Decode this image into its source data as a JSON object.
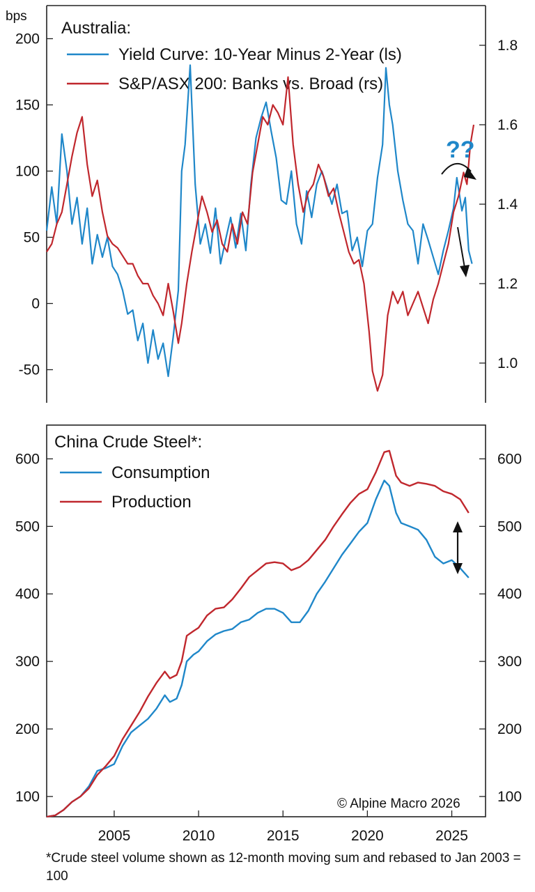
{
  "chart_data": [
    {
      "type": "line",
      "title": "Australia:",
      "left_axis_unit": "bps",
      "x_range": [
        2001,
        2027
      ],
      "left_ylim": [
        -75,
        225
      ],
      "right_ylim": [
        0.9,
        1.9
      ],
      "left_ticks": [
        "-50",
        "0",
        "50",
        "100",
        "150",
        "200"
      ],
      "left_tick_values": [
        -50,
        0,
        50,
        100,
        150,
        200
      ],
      "right_ticks": [
        "1.0",
        "1.2",
        "1.4",
        "1.6",
        "1.8"
      ],
      "right_tick_values": [
        1.0,
        1.2,
        1.4,
        1.6,
        1.8
      ],
      "annotation": "??",
      "series": [
        {
          "name": "Yield Curve: 10-Year Minus 2-Year (ls)",
          "axis": "left",
          "color": "#1f87c9",
          "x": [
            2001.0,
            2001.3,
            2001.6,
            2001.9,
            2002.2,
            2002.5,
            2002.8,
            2003.1,
            2003.4,
            2003.7,
            2004.0,
            2004.3,
            2004.6,
            2004.9,
            2005.2,
            2005.5,
            2005.8,
            2006.1,
            2006.4,
            2006.7,
            2007.0,
            2007.3,
            2007.6,
            2007.9,
            2008.2,
            2008.5,
            2008.8,
            2009.0,
            2009.2,
            2009.5,
            2009.8,
            2010.1,
            2010.4,
            2010.7,
            2011.0,
            2011.3,
            2011.6,
            2011.9,
            2012.2,
            2012.5,
            2012.8,
            2013.1,
            2013.4,
            2013.7,
            2014.0,
            2014.3,
            2014.6,
            2014.9,
            2015.2,
            2015.5,
            2015.8,
            2016.1,
            2016.4,
            2016.7,
            2017.0,
            2017.3,
            2017.6,
            2017.9,
            2018.2,
            2018.5,
            2018.8,
            2019.1,
            2019.4,
            2019.7,
            2020.0,
            2020.3,
            2020.6,
            2020.9,
            2021.1,
            2021.3,
            2021.5,
            2021.8,
            2022.1,
            2022.4,
            2022.7,
            2023.0,
            2023.3,
            2023.6,
            2023.9,
            2024.2,
            2024.5,
            2024.8,
            2025.1,
            2025.3,
            2025.6,
            2025.8,
            2026.0,
            2026.2
          ],
          "y": [
            55,
            88,
            60,
            128,
            100,
            60,
            80,
            45,
            72,
            30,
            52,
            35,
            50,
            28,
            22,
            10,
            -8,
            -5,
            -28,
            -15,
            -45,
            -20,
            -42,
            -30,
            -55,
            -25,
            10,
            100,
            120,
            180,
            90,
            45,
            60,
            38,
            72,
            30,
            48,
            65,
            42,
            68,
            40,
            90,
            125,
            140,
            152,
            130,
            110,
            78,
            75,
            100,
            60,
            45,
            85,
            65,
            90,
            100,
            88,
            75,
            90,
            68,
            70,
            40,
            50,
            28,
            55,
            60,
            95,
            120,
            178,
            150,
            135,
            100,
            78,
            60,
            55,
            30,
            60,
            48,
            35,
            22,
            40,
            55,
            72,
            95,
            70,
            80,
            40,
            30
          ]
        },
        {
          "name": "S&P/ASX 200: Banks vs. Broad (rs)",
          "axis": "right",
          "color": "#c0272d",
          "x": [
            2001.0,
            2001.3,
            2001.6,
            2001.9,
            2002.2,
            2002.5,
            2002.8,
            2003.1,
            2003.4,
            2003.7,
            2004.0,
            2004.3,
            2004.6,
            2004.9,
            2005.2,
            2005.5,
            2005.8,
            2006.1,
            2006.4,
            2006.7,
            2007.0,
            2007.3,
            2007.6,
            2007.9,
            2008.2,
            2008.5,
            2008.8,
            2009.0,
            2009.3,
            2009.6,
            2009.9,
            2010.2,
            2010.5,
            2010.8,
            2011.1,
            2011.4,
            2011.7,
            2012.0,
            2012.3,
            2012.6,
            2012.9,
            2013.2,
            2013.5,
            2013.8,
            2014.1,
            2014.4,
            2014.7,
            2015.0,
            2015.3,
            2015.6,
            2015.9,
            2016.2,
            2016.5,
            2016.8,
            2017.1,
            2017.4,
            2017.7,
            2018.0,
            2018.3,
            2018.6,
            2018.9,
            2019.2,
            2019.5,
            2019.8,
            2020.1,
            2020.3,
            2020.6,
            2020.9,
            2021.2,
            2021.5,
            2021.8,
            2022.1,
            2022.4,
            2022.7,
            2023.0,
            2023.3,
            2023.6,
            2023.9,
            2024.2,
            2024.5,
            2024.8,
            2025.1,
            2025.4,
            2025.7,
            2025.9,
            2026.1,
            2026.3
          ],
          "y": [
            1.28,
            1.3,
            1.35,
            1.38,
            1.45,
            1.52,
            1.58,
            1.62,
            1.5,
            1.42,
            1.46,
            1.38,
            1.32,
            1.3,
            1.29,
            1.27,
            1.25,
            1.25,
            1.22,
            1.2,
            1.2,
            1.17,
            1.15,
            1.12,
            1.2,
            1.13,
            1.05,
            1.1,
            1.2,
            1.28,
            1.35,
            1.42,
            1.38,
            1.33,
            1.36,
            1.3,
            1.28,
            1.35,
            1.3,
            1.38,
            1.35,
            1.48,
            1.55,
            1.62,
            1.6,
            1.65,
            1.63,
            1.6,
            1.72,
            1.55,
            1.45,
            1.38,
            1.43,
            1.45,
            1.5,
            1.47,
            1.42,
            1.44,
            1.38,
            1.33,
            1.28,
            1.25,
            1.26,
            1.2,
            1.08,
            0.98,
            0.93,
            0.97,
            1.12,
            1.18,
            1.15,
            1.18,
            1.12,
            1.15,
            1.18,
            1.14,
            1.1,
            1.16,
            1.2,
            1.25,
            1.3,
            1.38,
            1.42,
            1.48,
            1.45,
            1.55,
            1.6
          ]
        }
      ]
    },
    {
      "type": "line",
      "title": "China Crude Steel*:",
      "x_range": [
        2001,
        2027
      ],
      "ylim": [
        70,
        650
      ],
      "left_ticks": [
        "100",
        "200",
        "300",
        "400",
        "500",
        "600"
      ],
      "right_ticks": [
        "100",
        "200",
        "300",
        "400",
        "500",
        "600"
      ],
      "tick_values": [
        100,
        200,
        300,
        400,
        500,
        600
      ],
      "x_ticks": [
        "2005",
        "2010",
        "2015",
        "2020",
        "2025"
      ],
      "x_tick_values": [
        2005,
        2010,
        2015,
        2020,
        2025
      ],
      "series": [
        {
          "name": "Consumption",
          "color": "#1f87c9",
          "x": [
            2001.0,
            2001.5,
            2002.0,
            2002.5,
            2003.0,
            2003.5,
            2004.0,
            2004.5,
            2005.0,
            2005.5,
            2006.0,
            2006.5,
            2007.0,
            2007.5,
            2008.0,
            2008.3,
            2008.7,
            2009.0,
            2009.3,
            2009.7,
            2010.0,
            2010.5,
            2011.0,
            2011.5,
            2012.0,
            2012.5,
            2013.0,
            2013.5,
            2014.0,
            2014.5,
            2015.0,
            2015.5,
            2016.0,
            2016.5,
            2017.0,
            2017.5,
            2018.0,
            2018.5,
            2019.0,
            2019.5,
            2020.0,
            2020.5,
            2021.0,
            2021.3,
            2021.7,
            2022.0,
            2022.5,
            2023.0,
            2023.5,
            2024.0,
            2024.5,
            2025.0,
            2025.5,
            2026.0
          ],
          "y": [
            70,
            72,
            80,
            92,
            100,
            115,
            138,
            142,
            148,
            175,
            195,
            205,
            215,
            230,
            250,
            240,
            245,
            265,
            300,
            310,
            315,
            330,
            340,
            345,
            348,
            358,
            362,
            372,
            378,
            378,
            372,
            358,
            358,
            375,
            400,
            418,
            438,
            458,
            475,
            492,
            505,
            540,
            568,
            560,
            520,
            505,
            500,
            495,
            480,
            455,
            445,
            450,
            438,
            424
          ]
        },
        {
          "name": "Production",
          "color": "#c0272d",
          "x": [
            2001.0,
            2001.5,
            2002.0,
            2002.5,
            2003.0,
            2003.5,
            2004.0,
            2004.5,
            2005.0,
            2005.5,
            2006.0,
            2006.5,
            2007.0,
            2007.5,
            2008.0,
            2008.3,
            2008.7,
            2009.0,
            2009.3,
            2009.7,
            2010.0,
            2010.5,
            2011.0,
            2011.5,
            2012.0,
            2012.5,
            2013.0,
            2013.5,
            2014.0,
            2014.5,
            2015.0,
            2015.5,
            2016.0,
            2016.5,
            2017.0,
            2017.5,
            2018.0,
            2018.5,
            2019.0,
            2019.5,
            2020.0,
            2020.5,
            2021.0,
            2021.3,
            2021.7,
            2022.0,
            2022.5,
            2023.0,
            2023.5,
            2024.0,
            2024.5,
            2025.0,
            2025.5,
            2026.0
          ],
          "y": [
            70,
            72,
            80,
            92,
            100,
            112,
            132,
            145,
            160,
            185,
            205,
            225,
            248,
            268,
            285,
            275,
            280,
            300,
            338,
            345,
            350,
            368,
            378,
            380,
            392,
            408,
            425,
            435,
            445,
            447,
            445,
            435,
            440,
            450,
            465,
            480,
            500,
            518,
            535,
            548,
            555,
            580,
            610,
            612,
            575,
            565,
            560,
            565,
            563,
            560,
            552,
            548,
            540,
            520
          ]
        }
      ]
    }
  ],
  "legend": {
    "yield_curve": "Yield Curve: 10-Year Minus 2-Year (ls)",
    "banks": "S&P/ASX 200: Banks vs. Broad (rs)",
    "consumption": "Consumption",
    "production": "Production"
  },
  "credit": "© Alpine Macro 2026",
  "footnote": "*Crude steel volume shown as 12-month moving sum and rebased to Jan 2003 = 100",
  "colors": {
    "blue": "#1f87c9",
    "red": "#c0272d",
    "axis": "#222222"
  }
}
